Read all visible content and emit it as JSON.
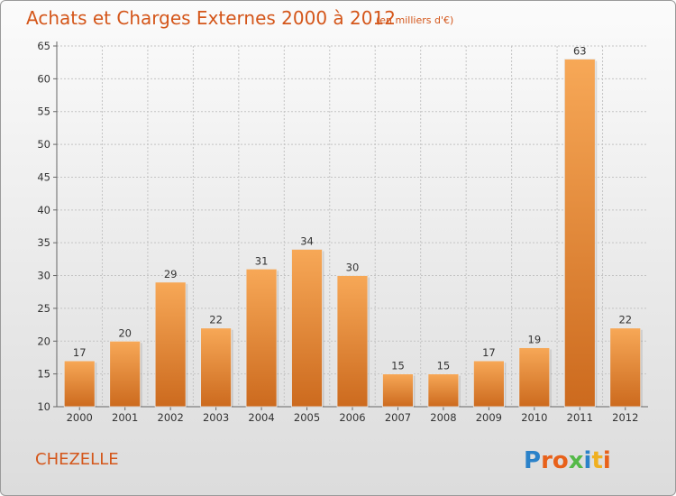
{
  "chart_data": {
    "type": "bar",
    "title": "Achats et Charges Externes 2000 à 2012",
    "unit": "(en milliers d'€)",
    "categories": [
      "2000",
      "2001",
      "2002",
      "2003",
      "2004",
      "2005",
      "2006",
      "2007",
      "2008",
      "2009",
      "2010",
      "2011",
      "2012"
    ],
    "values": [
      17,
      20,
      29,
      22,
      31,
      34,
      30,
      15,
      15,
      17,
      19,
      63,
      22
    ],
    "ylim": [
      10,
      65
    ],
    "yticks": [
      10,
      15,
      20,
      25,
      30,
      35,
      40,
      45,
      50,
      55,
      60,
      65
    ],
    "grid": true,
    "bar_color_light": "#f7a857",
    "bar_color_dark": "#cc6a1e"
  },
  "footer": {
    "place": "CHEZELLE",
    "logo_letters": [
      "P",
      "r",
      "o",
      "x",
      "i",
      "t",
      "i"
    ],
    "logo_colors": [
      "#2b82c9",
      "#e8611a",
      "#e8611a",
      "#54b948",
      "#2b82c9",
      "#f0b020",
      "#e8611a"
    ]
  }
}
